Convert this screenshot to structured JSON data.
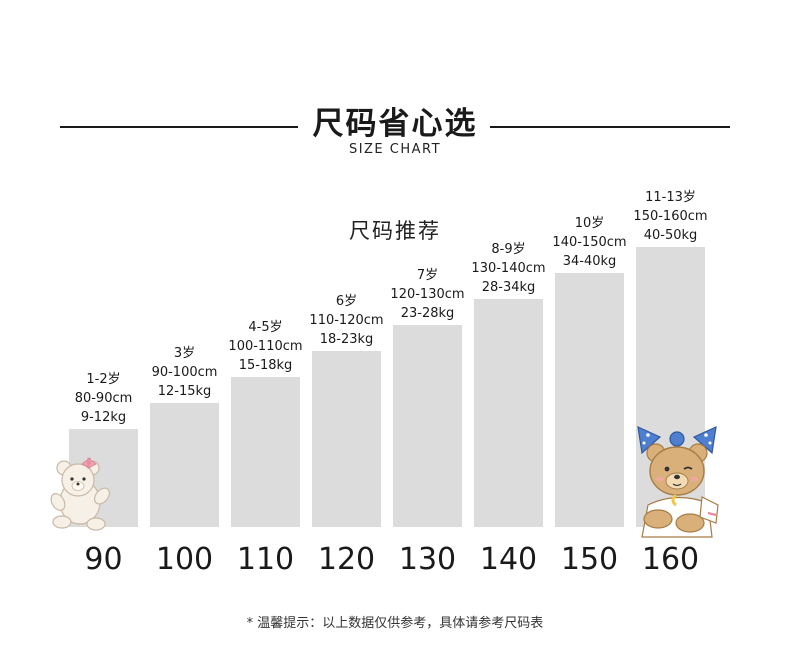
{
  "header": {
    "title": "尺码省心选",
    "subtitle": "SIZE CHART",
    "section_title": "尺码推荐"
  },
  "footer": {
    "note": "* 温馨提示：以上数据仅供参考，具体请参考尺码表"
  },
  "colors": {
    "bar": "#dcdcdc",
    "text": "#1a1a1a",
    "line": "#1a1a1a"
  },
  "icons": [
    "pink-bow-teddy-bear-icon",
    "blue-bow-teddy-bear-icon"
  ],
  "chart_data": {
    "type": "bar",
    "categories": [
      "90",
      "100",
      "110",
      "120",
      "130",
      "140",
      "150",
      "160"
    ],
    "values": [
      90,
      100,
      110,
      120,
      130,
      140,
      150,
      160
    ],
    "labels": [
      [
        "1-2岁",
        "80-90cm",
        "9-12kg"
      ],
      [
        "3岁",
        "90-100cm",
        "12-15kg"
      ],
      [
        "4-5岁",
        "100-110cm",
        "15-18kg"
      ],
      [
        "6岁",
        "110-120cm",
        "18-23kg"
      ],
      [
        "7岁",
        "120-130cm",
        "23-28kg"
      ],
      [
        "8-9岁",
        "130-140cm",
        "28-34kg"
      ],
      [
        "10岁",
        "140-150cm",
        "34-40kg"
      ],
      [
        "11-13岁",
        "150-160cm",
        "40-50kg"
      ]
    ],
    "title": "",
    "xlabel": "",
    "ylabel": "",
    "grid": false,
    "legend": "none"
  }
}
